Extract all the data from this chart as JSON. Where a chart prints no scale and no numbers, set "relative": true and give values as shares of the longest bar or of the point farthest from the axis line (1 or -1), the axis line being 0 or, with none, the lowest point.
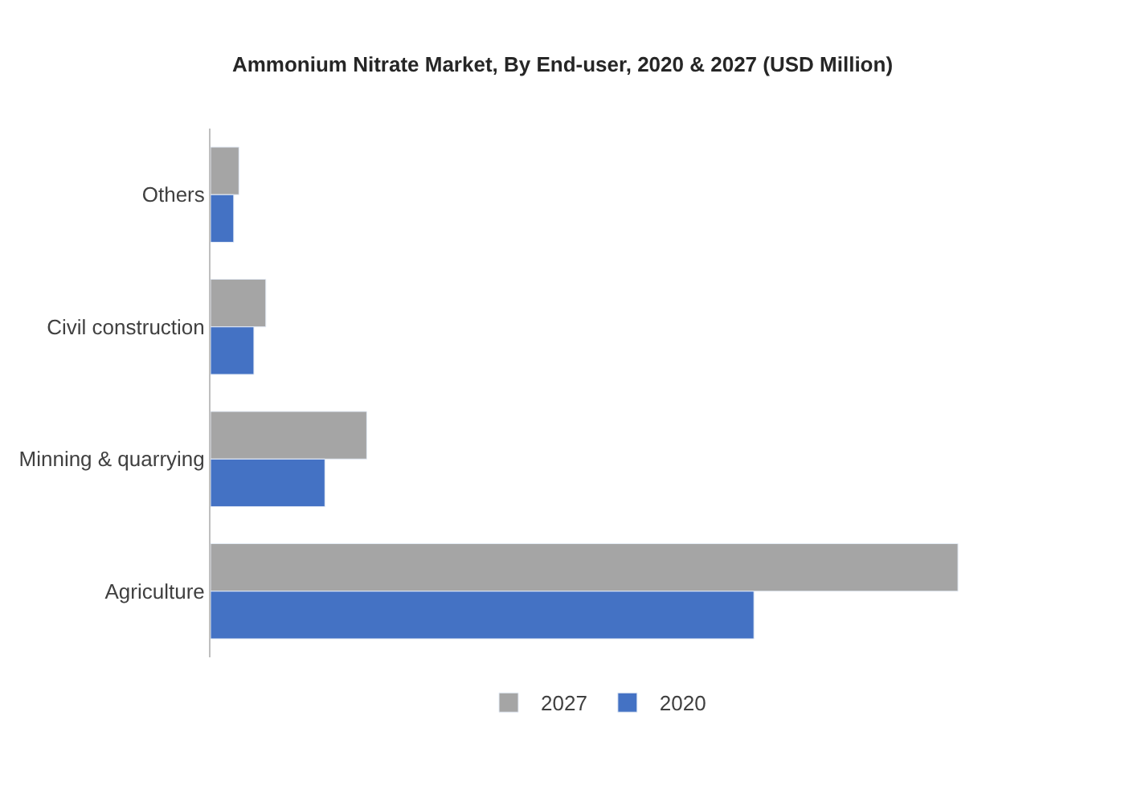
{
  "chart_data": {
    "type": "bar",
    "orientation": "horizontal",
    "relative": true,
    "title": "Ammonium Nitrate Market, By End-user, 2020 & 2027 (USD Million)",
    "categories": [
      "Others",
      "Civil construction",
      "Minning & quarrying",
      "Agriculture"
    ],
    "series": [
      {
        "name": "2027",
        "color": "#a5a5a5",
        "values": [
          0.038,
          0.074,
          0.209,
          1
        ]
      },
      {
        "name": "2020",
        "color": "#4472c4",
        "values": [
          0.031,
          0.058,
          0.153,
          0.727
        ]
      }
    ],
    "legend": "bottom"
  }
}
